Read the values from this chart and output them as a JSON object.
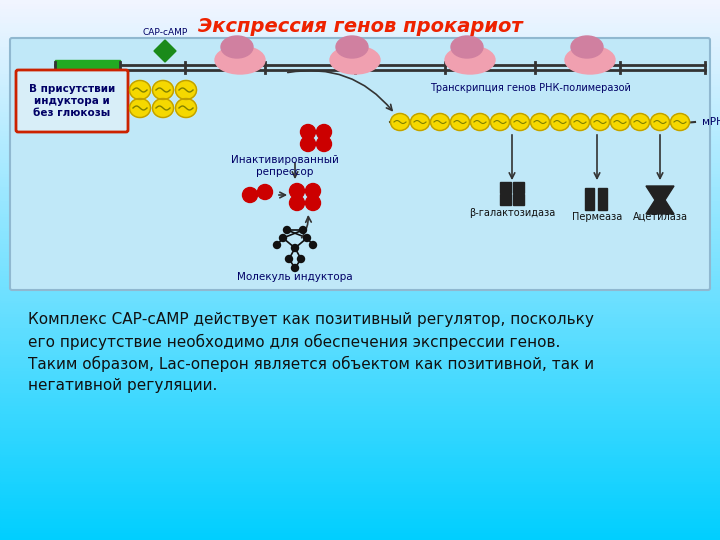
{
  "title": "Экспрессия генов прокариот",
  "title_color": "#EE2200",
  "title_fontsize": 14,
  "page_bg_top": "#00cfff",
  "page_bg_bottom": "#ffffff",
  "text_block": [
    "Комплекс САР-сАМР действует как позитивный регулятор, поскольку",
    "его присутствие необходимо для обеспечения экспрессии генов.",
    "Таким образом, Lac-оперон является объектом как позитивной, так и",
    "негативной регуляции."
  ],
  "text_fontsize": 11,
  "text_color": "#111111",
  "label_cap_camp": "САР-сАМР",
  "label_inactivated": "Инактивированный\nрепрессор",
  "label_molecule": "Молекуль индуктора",
  "label_transcription": "Транскрипция генов РНК-полимеразой",
  "label_mrna": "мРНК",
  "label_beta": "β-галактозидаза",
  "label_permease": "Пермеаза",
  "label_acetylase": "Ацетилаза",
  "label_conditions": "В присутствии\nиндуктора и\nбез глюкозы"
}
